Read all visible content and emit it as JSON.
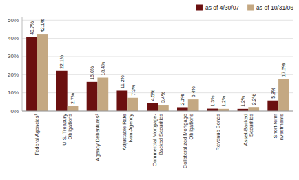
{
  "chart_data": {
    "type": "bar",
    "categories": [
      "Federal Agencies¹",
      "U.S. Treasury\nObligations",
      "Agency Debentures²",
      "Adjustable Rate\nNon-Agency",
      "Commercial Mortgage-\nBacked Securities",
      "Collateralized Mortgage\nObligations",
      "Revenue Bonds",
      "Asset-Backed\nSecurities",
      "Short-term\nInvestments"
    ],
    "series": [
      {
        "name": "as of 4/30/07",
        "color": "#6b1010",
        "values": [
          40.7,
          22.1,
          16.0,
          11.2,
          4.5,
          2.1,
          1.3,
          1.2,
          5.8
        ],
        "value_labels": [
          "40.7%",
          "22.1%",
          "16.0%",
          "11.2%",
          "4.5%",
          "2.1%",
          "1.3%",
          "1.2%",
          "5.8%"
        ]
      },
      {
        "name": "as of 10/31/06",
        "color": "#c4a882",
        "values": [
          42.1,
          2.7,
          18.4,
          7.3,
          3.4,
          6.4,
          1.2,
          2.2,
          17.6
        ],
        "value_labels": [
          "42.1%",
          "2.7%",
          "18.4%",
          "7.3%",
          "3.4%",
          "6.4%",
          "1.2%",
          "2.2%",
          "17.6%"
        ]
      }
    ],
    "ylim": [
      0,
      52
    ],
    "yticks": [
      {
        "value": 0,
        "label": "0%"
      },
      {
        "value": 10,
        "label": "10%"
      },
      {
        "value": 20,
        "label": "20%"
      },
      {
        "value": 30,
        "label": "30%"
      },
      {
        "value": 40,
        "label": "40%"
      },
      {
        "value": 50,
        "label": "50%"
      }
    ],
    "grid": true,
    "legend": "upper right",
    "data_labels": true
  }
}
